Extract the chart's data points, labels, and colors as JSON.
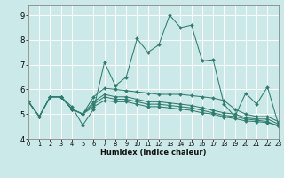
{
  "title": "",
  "xlabel": "Humidex (Indice chaleur)",
  "ylabel": "",
  "bg_color": "#cce9e9",
  "grid_color": "#ffffff",
  "line_color": "#2e7d6e",
  "xlim": [
    0,
    23
  ],
  "ylim": [
    4.0,
    9.4
  ],
  "yticks": [
    4,
    5,
    6,
    7,
    8,
    9
  ],
  "xticks": [
    0,
    1,
    2,
    3,
    4,
    5,
    6,
    7,
    8,
    9,
    10,
    11,
    12,
    13,
    14,
    15,
    16,
    17,
    18,
    19,
    20,
    21,
    22,
    23
  ],
  "lines": [
    [
      5.5,
      4.9,
      5.7,
      5.7,
      5.3,
      4.55,
      5.2,
      7.1,
      6.15,
      6.5,
      8.05,
      7.5,
      7.8,
      9.0,
      8.5,
      8.6,
      7.15,
      7.2,
      5.4,
      4.9,
      5.85,
      5.4,
      6.1,
      4.6
    ],
    [
      5.5,
      4.9,
      5.7,
      5.7,
      5.2,
      5.0,
      5.7,
      6.05,
      6.0,
      5.95,
      5.9,
      5.85,
      5.8,
      5.8,
      5.8,
      5.75,
      5.7,
      5.65,
      5.55,
      5.2,
      5.0,
      4.9,
      4.9,
      4.7
    ],
    [
      5.5,
      4.9,
      5.7,
      5.7,
      5.2,
      5.0,
      5.5,
      5.8,
      5.7,
      5.7,
      5.6,
      5.5,
      5.5,
      5.45,
      5.4,
      5.35,
      5.25,
      5.15,
      5.05,
      5.0,
      4.85,
      4.8,
      4.8,
      4.6
    ],
    [
      5.5,
      4.9,
      5.7,
      5.7,
      5.2,
      5.0,
      5.4,
      5.7,
      5.6,
      5.6,
      5.5,
      5.4,
      5.4,
      5.35,
      5.3,
      5.25,
      5.15,
      5.05,
      4.95,
      4.9,
      4.8,
      4.75,
      4.7,
      4.5
    ],
    [
      5.5,
      4.9,
      5.7,
      5.7,
      5.2,
      5.0,
      5.3,
      5.55,
      5.5,
      5.5,
      5.4,
      5.3,
      5.3,
      5.25,
      5.2,
      5.15,
      5.05,
      5.0,
      4.88,
      4.82,
      4.72,
      4.7,
      4.65,
      4.55
    ]
  ]
}
